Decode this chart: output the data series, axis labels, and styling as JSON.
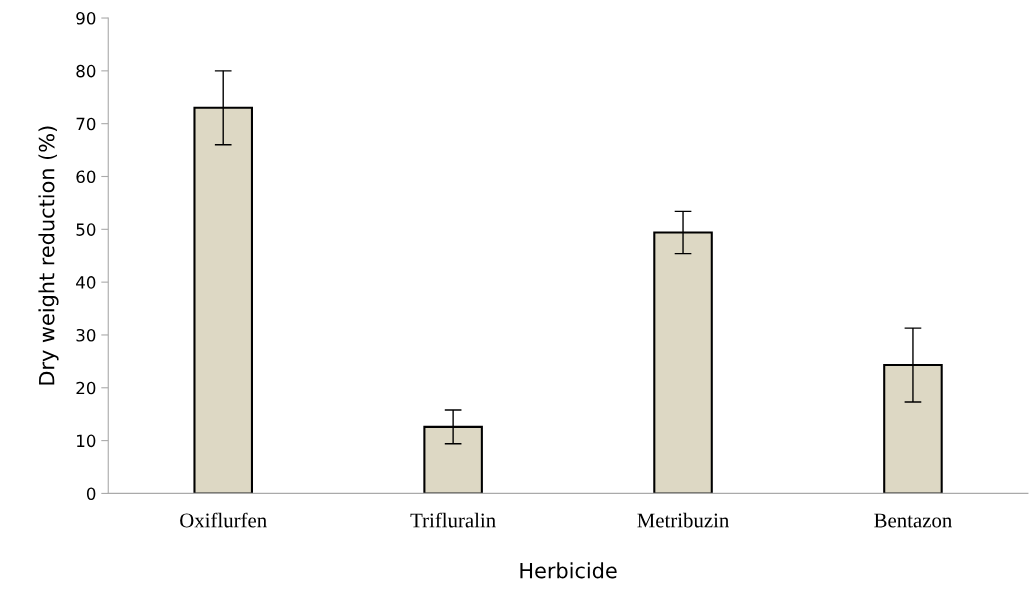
{
  "chart_data": {
    "type": "bar",
    "xlabel": "Herbicide",
    "ylabel": "Dry weight reduction (%)",
    "categories": [
      "Oxiflurfen",
      "Trifluralin",
      "Metribuzin",
      "Bentazon"
    ],
    "values": [
      73,
      12.6,
      49.4,
      24.3
    ],
    "errors": [
      7,
      3.2,
      4,
      7
    ],
    "color": "#ddd8c4",
    "ylim": [
      0,
      90
    ],
    "yticks": [
      0,
      10,
      20,
      30,
      40,
      50,
      60,
      70,
      80,
      90
    ],
    "grid": false,
    "legend": false
  }
}
